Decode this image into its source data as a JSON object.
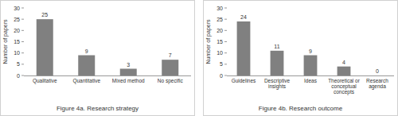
{
  "chart_data": [
    {
      "type": "bar",
      "title": "Figure 4a. Research strategy",
      "y_label": "Number of papers",
      "categories": [
        "Qualitative",
        "Quantitative",
        "Mixed method",
        "No specific"
      ],
      "values": [
        25,
        9,
        3,
        7
      ],
      "color": "#808080",
      "ylim": [
        0,
        30
      ],
      "yticks": [
        0,
        5,
        10,
        15,
        20,
        25,
        30
      ],
      "grid": false,
      "data_labels": true
    },
    {
      "type": "bar",
      "title": "Figure 4b. Research outcome",
      "y_label": "Number of papers",
      "categories": [
        "Guidelines",
        "Descriptive insights",
        "Ideas",
        "Theoretical or conceptual concepts",
        "Research agenda"
      ],
      "values": [
        24,
        11,
        9,
        4,
        0
      ],
      "color": "#808080",
      "ylim": [
        0,
        30
      ],
      "yticks": [
        0,
        5,
        10,
        15,
        20,
        25,
        30
      ],
      "grid": false,
      "data_labels": true
    }
  ]
}
